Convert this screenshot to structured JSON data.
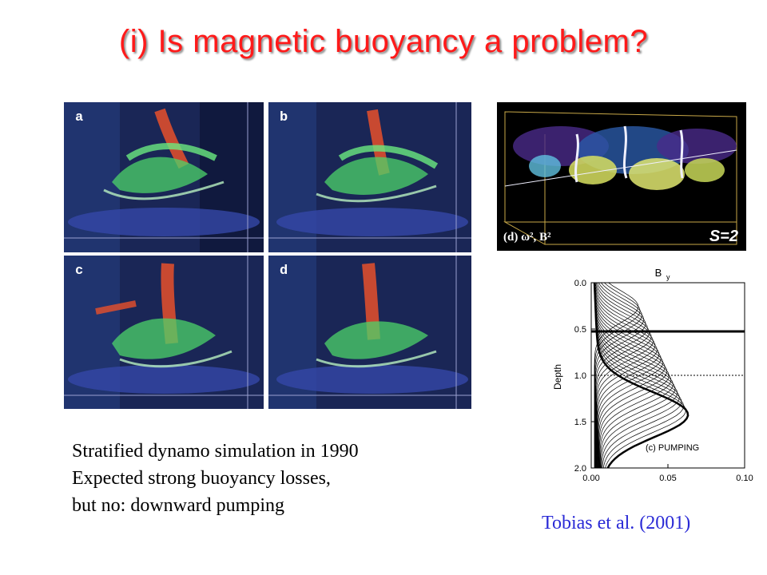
{
  "title": "(i) Is magnetic buoyancy a problem?",
  "panels": [
    {
      "label": "a"
    },
    {
      "label": "b"
    },
    {
      "label": "c"
    },
    {
      "label": "d"
    }
  ],
  "caption": {
    "line1": "Stratified dynamo simulation in 1990",
    "line2": "Expected strong buoyancy losses,",
    "line3": "but no: downward pumping"
  },
  "sim_image": {
    "label": "(d) ω², B²",
    "s_label": "S=2"
  },
  "profile_plot": {
    "top_label": "B",
    "top_label_sub": "y",
    "ylabel": "Depth",
    "annotation": "(c) PUMPING",
    "yticks": [
      "0.0",
      "0.5",
      "1.0",
      "1.5",
      "2.0"
    ],
    "xticks": [
      "0.00",
      "0.05",
      "0.10"
    ]
  },
  "citation": "Tobias et al. (2001)",
  "colors": {
    "title": "#ff1a1a",
    "citation": "#2a2ad6"
  }
}
